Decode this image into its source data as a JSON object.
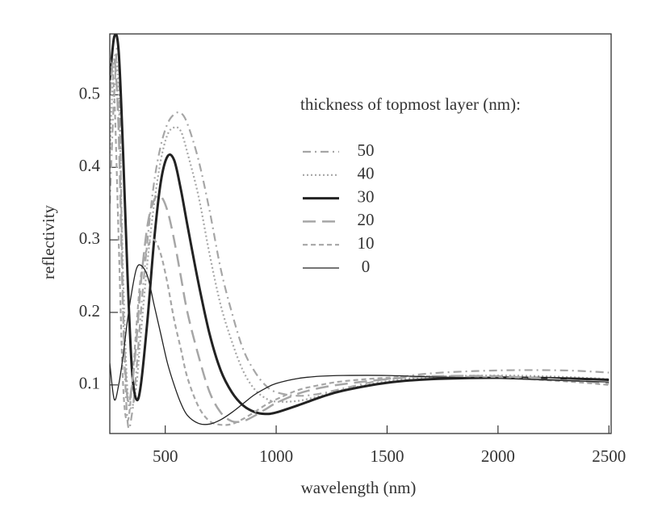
{
  "chart_data": {
    "type": "line",
    "xlabel": "wavelength  (nm)",
    "ylabel": "reflectivity",
    "legend_title": "thickness of topmost layer (nm):",
    "xlim": [
      250,
      2510
    ],
    "ylim": [
      0.033,
      0.584
    ],
    "xticks": [
      500,
      1000,
      1500,
      2000,
      2500
    ],
    "yticks": [
      0.1,
      0.2,
      0.3,
      0.4,
      0.5
    ],
    "x": [
      250,
      270,
      290,
      310,
      330,
      350,
      370,
      390,
      420,
      450,
      480,
      510,
      540,
      570,
      600,
      650,
      700,
      750,
      800,
      850,
      900,
      950,
      1000,
      1100,
      1200,
      1300,
      1500,
      1700,
      2000,
      2300,
      2500
    ],
    "series": [
      {
        "name": "50",
        "color": "#a6a6a6",
        "width": 2.2,
        "dash": "10,5,2,5",
        "values": [
          0.35,
          0.5,
          0.55,
          0.2,
          0.05,
          0.06,
          0.12,
          0.2,
          0.3,
          0.38,
          0.43,
          0.46,
          0.473,
          0.475,
          0.46,
          0.41,
          0.34,
          0.26,
          0.2,
          0.15,
          0.12,
          0.1,
          0.09,
          0.085,
          0.088,
          0.095,
          0.108,
          0.116,
          0.12,
          0.12,
          0.117
        ]
      },
      {
        "name": "40",
        "color": "#a6a6a6",
        "width": 2.2,
        "dash": "2,3",
        "values": [
          0.42,
          0.55,
          0.5,
          0.25,
          0.09,
          0.07,
          0.1,
          0.17,
          0.27,
          0.35,
          0.41,
          0.445,
          0.455,
          0.45,
          0.42,
          0.36,
          0.28,
          0.21,
          0.16,
          0.12,
          0.095,
          0.082,
          0.077,
          0.078,
          0.085,
          0.093,
          0.105,
          0.111,
          0.113,
          0.111,
          0.108
        ]
      },
      {
        "name": "30",
        "color": "#222222",
        "width": 3,
        "dash": "none",
        "values": [
          0.52,
          0.58,
          0.56,
          0.42,
          0.25,
          0.12,
          0.08,
          0.1,
          0.19,
          0.3,
          0.38,
          0.415,
          0.41,
          0.37,
          0.32,
          0.24,
          0.17,
          0.12,
          0.09,
          0.072,
          0.063,
          0.06,
          0.062,
          0.072,
          0.083,
          0.092,
          0.103,
          0.108,
          0.11,
          0.109,
          0.107
        ]
      },
      {
        "name": "20",
        "color": "#a6a6a6",
        "width": 2.5,
        "dash": "16,8",
        "values": [
          0.5,
          0.55,
          0.45,
          0.2,
          0.08,
          0.1,
          0.16,
          0.24,
          0.32,
          0.355,
          0.36,
          0.34,
          0.3,
          0.25,
          0.2,
          0.14,
          0.09,
          0.062,
          0.05,
          0.05,
          0.057,
          0.066,
          0.075,
          0.088,
          0.096,
          0.101,
          0.108,
          0.112,
          0.112,
          0.107,
          0.102
        ]
      },
      {
        "name": "10",
        "color": "#a6a6a6",
        "width": 2.2,
        "dash": "6,4",
        "values": [
          0.55,
          0.5,
          0.3,
          0.1,
          0.05,
          0.1,
          0.18,
          0.25,
          0.29,
          0.3,
          0.28,
          0.24,
          0.19,
          0.15,
          0.11,
          0.07,
          0.05,
          0.045,
          0.046,
          0.053,
          0.062,
          0.072,
          0.08,
          0.093,
          0.1,
          0.105,
          0.11,
          0.112,
          0.11,
          0.105,
          0.1
        ]
      },
      {
        "name": "0",
        "color": "#222222",
        "width": 1.3,
        "dash": "none",
        "values": [
          0.13,
          0.08,
          0.1,
          0.14,
          0.19,
          0.23,
          0.26,
          0.265,
          0.25,
          0.21,
          0.17,
          0.13,
          0.1,
          0.075,
          0.058,
          0.047,
          0.046,
          0.052,
          0.062,
          0.074,
          0.086,
          0.095,
          0.102,
          0.109,
          0.112,
          0.113,
          0.113,
          0.111,
          0.109,
          0.106,
          0.104
        ]
      }
    ]
  }
}
